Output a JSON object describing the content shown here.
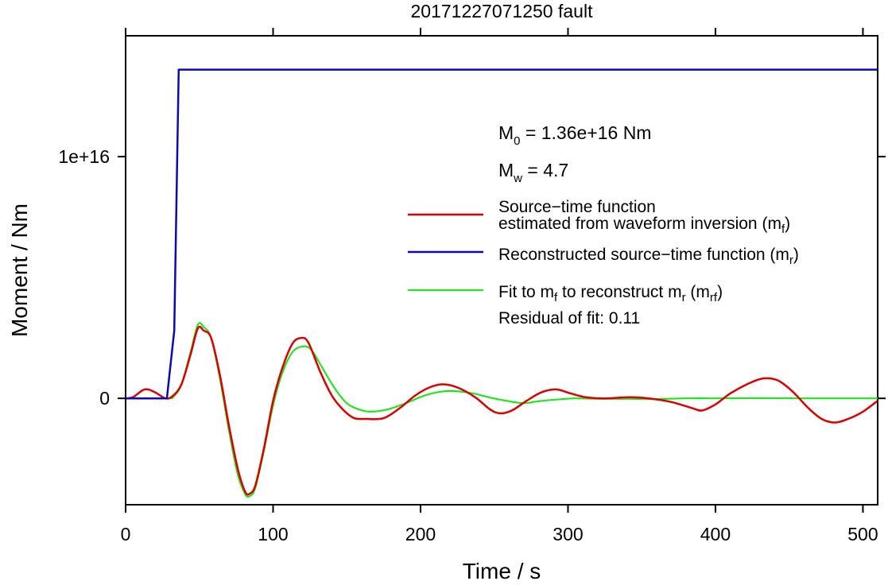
{
  "chart_data": {
    "type": "line",
    "title": "20171227071250 fault",
    "xlabel": "Time / s",
    "ylabel": "Moment / Nm",
    "xlim": [
      0,
      510
    ],
    "ylim": [
      -4400000000000000.0,
      1.5e+16
    ],
    "x_ticks": [
      {
        "value": 0,
        "label": "0"
      },
      {
        "value": 100,
        "label": "100"
      },
      {
        "value": 200,
        "label": "200"
      },
      {
        "value": 300,
        "label": "300"
      },
      {
        "value": 400,
        "label": "400"
      },
      {
        "value": 500,
        "label": "500"
      }
    ],
    "y_ticks": [
      {
        "value": 0,
        "label": "0"
      },
      {
        "value": 1e+16,
        "label": "1e+16"
      }
    ],
    "grid": false,
    "legend_position": "right",
    "annotations": {
      "m0_sym": "M",
      "m0_sub": "0",
      "m0_text": " = 1.36e+16 Nm",
      "mw_sym": "M",
      "mw_sub": "w",
      "mw_text": " = 4.7",
      "residual": "Residual of fit: 0.11"
    },
    "legend": {
      "red_line1": "Source−time function",
      "red_line2a": "estimated from waveform inversion (m",
      "red_line2_sub": "f",
      "red_line2b": ")",
      "blue_a": "Reconstructed source−time function (m",
      "blue_sub": "r",
      "blue_b": ")",
      "green_a": "Fit to m",
      "green_sub1": "f",
      "green_b": " to reconstruct m",
      "green_sub2": "r",
      "green_c": " (m",
      "green_sub3": "rf",
      "green_d": ")"
    },
    "series": [
      {
        "id": "mf",
        "color": "#dd0000",
        "width": 2.5,
        "points": [
          [
            0,
            0
          ],
          [
            5,
            50000000000000.0
          ],
          [
            13,
            370000000000000.0
          ],
          [
            20,
            250000000000000.0
          ],
          [
            27,
            0
          ],
          [
            32,
            100000000000000.0
          ],
          [
            38,
            600000000000000.0
          ],
          [
            44,
            1800000000000000.0
          ],
          [
            49,
            2900000000000000.0
          ],
          [
            53,
            2800000000000000.0
          ],
          [
            58,
            2500000000000000.0
          ],
          [
            64,
            950000000000000.0
          ],
          [
            70,
            -1100000000000000.0
          ],
          [
            76,
            -2900000000000000.0
          ],
          [
            81,
            -3850000000000000.0
          ],
          [
            84,
            -3950000000000000.0
          ],
          [
            88,
            -3600000000000000.0
          ],
          [
            94,
            -2000000000000000.0
          ],
          [
            100,
            -100000000000000.0
          ],
          [
            106,
            1200000000000000.0
          ],
          [
            113,
            2250000000000000.0
          ],
          [
            119,
            2500000000000000.0
          ],
          [
            124,
            2300000000000000.0
          ],
          [
            132,
            1100000000000000.0
          ],
          [
            140,
            100000000000000.0
          ],
          [
            148,
            -500000000000000.0
          ],
          [
            155,
            -820000000000000.0
          ],
          [
            163,
            -850000000000000.0
          ],
          [
            175,
            -820000000000000.0
          ],
          [
            186,
            -400000000000000.0
          ],
          [
            196,
            100000000000000.0
          ],
          [
            206,
            450000000000000.0
          ],
          [
            215,
            580000000000000.0
          ],
          [
            225,
            450000000000000.0
          ],
          [
            237,
            50000000000000.0
          ],
          [
            247,
            -450000000000000.0
          ],
          [
            254,
            -620000000000000.0
          ],
          [
            262,
            -500000000000000.0
          ],
          [
            272,
            -100000000000000.0
          ],
          [
            282,
            250000000000000.0
          ],
          [
            292,
            370000000000000.0
          ],
          [
            302,
            200000000000000.0
          ],
          [
            312,
            50000000000000.0
          ],
          [
            325,
            0
          ],
          [
            342,
            50000000000000.0
          ],
          [
            355,
            0
          ],
          [
            370,
            -150000000000000.0
          ],
          [
            384,
            -400000000000000.0
          ],
          [
            391,
            -500000000000000.0
          ],
          [
            400,
            -250000000000000.0
          ],
          [
            410,
            200000000000000.0
          ],
          [
            422,
            600000000000000.0
          ],
          [
            432,
            820000000000000.0
          ],
          [
            442,
            750000000000000.0
          ],
          [
            452,
            300000000000000.0
          ],
          [
            463,
            -400000000000000.0
          ],
          [
            472,
            -850000000000000.0
          ],
          [
            481,
            -1000000000000000.0
          ],
          [
            490,
            -850000000000000.0
          ],
          [
            500,
            -550000000000000.0
          ],
          [
            510,
            -100000000000000.0
          ]
        ]
      },
      {
        "id": "mr",
        "color": "#0a0ab4",
        "width": 2.5,
        "points": [
          [
            0,
            0
          ],
          [
            28,
            0
          ],
          [
            33,
            2800000000000000.0
          ],
          [
            36,
            1.36e+16
          ],
          [
            510,
            1.36e+16
          ]
        ]
      },
      {
        "id": "mrf",
        "color": "#22e522",
        "width": 2.2,
        "points": [
          [
            0,
            0
          ],
          [
            28,
            0
          ],
          [
            33,
            100000000000000.0
          ],
          [
            38,
            600000000000000.0
          ],
          [
            44,
            1900000000000000.0
          ],
          [
            49,
            3050000000000000.0
          ],
          [
            53,
            2950000000000000.0
          ],
          [
            58,
            2500000000000000.0
          ],
          [
            64,
            800000000000000.0
          ],
          [
            70,
            -1300000000000000.0
          ],
          [
            76,
            -3150000000000000.0
          ],
          [
            81,
            -3950000000000000.0
          ],
          [
            84,
            -4050000000000000.0
          ],
          [
            88,
            -3700000000000000.0
          ],
          [
            94,
            -2100000000000000.0
          ],
          [
            100,
            -300000000000000.0
          ],
          [
            106,
            1000000000000000.0
          ],
          [
            113,
            1900000000000000.0
          ],
          [
            120,
            2150000000000000.0
          ],
          [
            126,
            2000000000000000.0
          ],
          [
            134,
            1200000000000000.0
          ],
          [
            142,
            400000000000000.0
          ],
          [
            150,
            -200000000000000.0
          ],
          [
            158,
            -450000000000000.0
          ],
          [
            166,
            -550000000000000.0
          ],
          [
            178,
            -450000000000000.0
          ],
          [
            190,
            -200000000000000.0
          ],
          [
            202,
            100000000000000.0
          ],
          [
            214,
            280000000000000.0
          ],
          [
            224,
            300000000000000.0
          ],
          [
            236,
            200000000000000.0
          ],
          [
            248,
            20000000000000.0
          ],
          [
            260,
            -120000000000000.0
          ],
          [
            270,
            -200000000000000.0
          ],
          [
            280,
            -120000000000000.0
          ],
          [
            292,
            -50000000000000.0
          ],
          [
            305,
            0
          ],
          [
            320,
            -20000000000000.0
          ],
          [
            340,
            -20000000000000.0
          ],
          [
            360,
            -30000000000000.0
          ],
          [
            380,
            0
          ],
          [
            400,
            0
          ],
          [
            430,
            10000000000000.0
          ],
          [
            460,
            0
          ],
          [
            510,
            0
          ]
        ]
      }
    ]
  }
}
